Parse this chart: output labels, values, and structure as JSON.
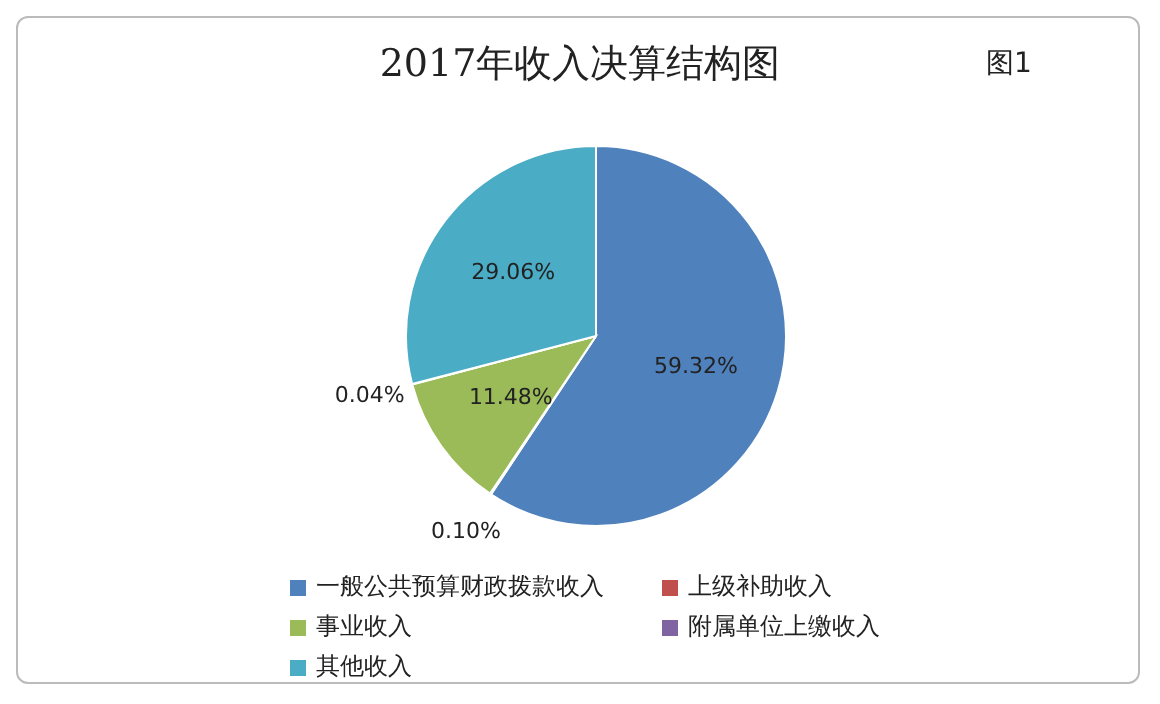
{
  "chart_data": {
    "type": "pie",
    "title": "2017年收入决算结构图",
    "annotations": [
      "图1"
    ],
    "categories": [
      "一般公共预算财政拨款收入",
      "上级补助收入",
      "事业收入",
      "附属单位上缴收入",
      "其他收入"
    ],
    "values": [
      59.32,
      0.1,
      11.48,
      0.04,
      29.06
    ],
    "colors": [
      "#4f81bd",
      "#c0504d",
      "#9bbb59",
      "#8064a2",
      "#4bacc6"
    ],
    "value_labels": [
      "59.32%",
      "0.10%",
      "11.48%",
      "0.04%",
      "29.06%"
    ],
    "legend": "bottom"
  }
}
